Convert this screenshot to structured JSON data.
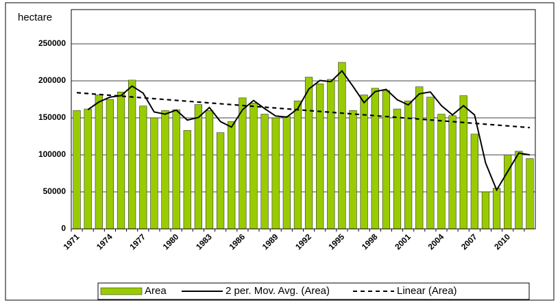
{
  "chart_data": {
    "type": "bar",
    "y_label": "hectare",
    "categories": [
      "1971",
      null,
      null,
      "1974",
      null,
      null,
      "1977",
      null,
      null,
      "1980",
      null,
      null,
      "1983",
      null,
      null,
      "1986",
      null,
      null,
      "1989",
      null,
      null,
      "1992",
      null,
      null,
      "1995",
      null,
      null,
      "1998",
      null,
      null,
      "2001",
      null,
      null,
      "2004",
      null,
      null,
      "2007",
      null,
      null,
      "2010",
      null,
      null
    ],
    "series": [
      {
        "name": "Area",
        "type": "bar",
        "color": "#99cc00",
        "values": [
          160000,
          162000,
          181000,
          175000,
          185000,
          201000,
          166000,
          150000,
          160000,
          161000,
          133000,
          168000,
          160000,
          130000,
          145000,
          177000,
          170000,
          155000,
          150000,
          152000,
          173000,
          205000,
          196000,
          202000,
          225000,
          160000,
          181000,
          190000,
          187000,
          162000,
          173000,
          192000,
          178000,
          155000,
          153000,
          180000,
          128000,
          50000,
          55000,
          100000,
          105000,
          95000
        ]
      },
      {
        "name": "2 per. Mov. Avg. (Area)",
        "type": "line",
        "color": "#000000",
        "style": "solid",
        "values": [
          null,
          161000,
          171500,
          178000,
          180000,
          193000,
          183500,
          158000,
          155000,
          160500,
          147000,
          150500,
          164000,
          145000,
          137500,
          161000,
          173500,
          162500,
          152500,
          151000,
          162500,
          189000,
          200500,
          199000,
          213500,
          192500,
          170500,
          185500,
          188500,
          174500,
          167500,
          182500,
          185000,
          166500,
          154000,
          166500,
          154000,
          89000,
          52500,
          77500,
          102500,
          100000
        ]
      },
      {
        "name": "Linear (Area)",
        "type": "line",
        "color": "#000000",
        "style": "dashed",
        "values": [
          184000,
          182850,
          181700,
          180550,
          179400,
          178250,
          177100,
          175950,
          174800,
          173650,
          172500,
          171350,
          170200,
          169050,
          167900,
          166750,
          165600,
          164450,
          163300,
          162150,
          161000,
          159850,
          158700,
          157550,
          156400,
          155250,
          154100,
          152950,
          151800,
          150650,
          149500,
          148350,
          147200,
          146050,
          144900,
          143750,
          142600,
          141450,
          140300,
          139150,
          138000,
          136850
        ]
      }
    ],
    "ylim": [
      0,
      250000
    ],
    "yticks": [
      0,
      50000,
      100000,
      150000,
      200000,
      250000
    ],
    "grid": true,
    "legend": "bottom"
  }
}
